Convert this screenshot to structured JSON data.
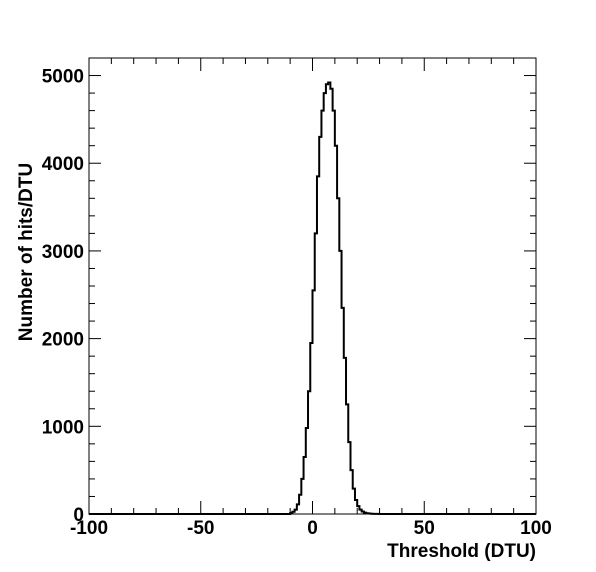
{
  "chart_data": {
    "type": "histogram",
    "title": "",
    "xlabel": "Threshold (DTU)",
    "ylabel": "Number of hits/DTU",
    "xlim": [
      -100,
      100
    ],
    "ylim": [
      0,
      5200
    ],
    "x_ticks": [
      -100,
      -50,
      0,
      50,
      100
    ],
    "x_tick_labels": [
      "-100",
      "-50",
      "0",
      "50",
      "100"
    ],
    "y_ticks": [
      0,
      1000,
      2000,
      3000,
      4000,
      5000
    ],
    "y_tick_labels": [
      "0",
      "1000",
      "2000",
      "3000",
      "4000",
      "5000"
    ],
    "grid": false,
    "legend": "none",
    "bin_width": 1,
    "bin_edges": [
      -10,
      50
    ],
    "counts": [
      10,
      25,
      50,
      110,
      220,
      400,
      650,
      980,
      1400,
      1950,
      2550,
      3200,
      3850,
      4300,
      4600,
      4800,
      4900,
      4920,
      4850,
      4600,
      4200,
      3600,
      3000,
      2350,
      1780,
      1250,
      820,
      500,
      290,
      160,
      90,
      50,
      28,
      15,
      8,
      5,
      3,
      2,
      1,
      1,
      0,
      0,
      0,
      0,
      0,
      0,
      0,
      0,
      0,
      0,
      0,
      0,
      0,
      0,
      0,
      0,
      0,
      0,
      0,
      0
    ]
  }
}
